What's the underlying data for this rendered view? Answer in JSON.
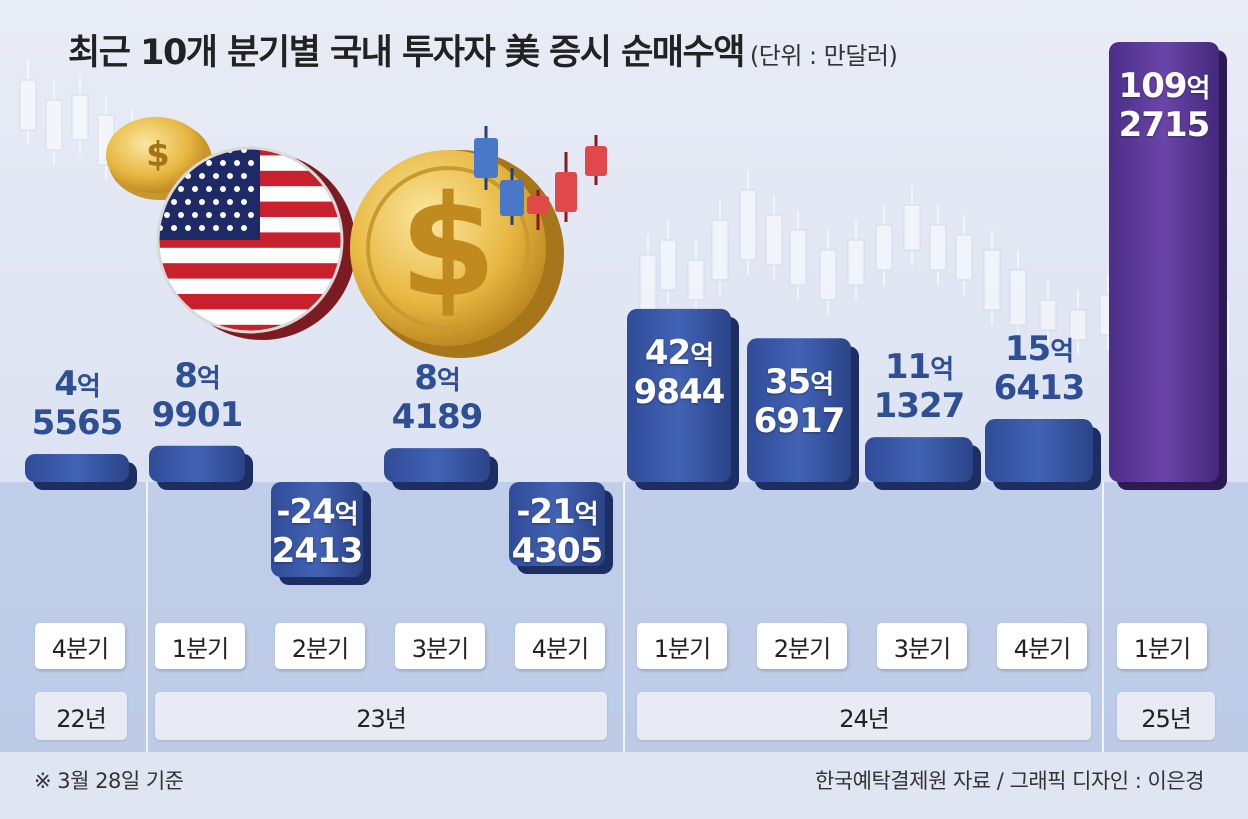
{
  "title": "최근 10개 분기별 국내 투자자 美 증시 순매수액",
  "unit": "(단위 : 만달러)",
  "footnote_left": "※ 3월 28일 기준",
  "footnote_right": "한국예탁결제원 자료 / 그래픽 디자인 : 이은경",
  "colors": {
    "bar": "#3a5aa8",
    "bar_highlight": "#5a3a96",
    "label_text": "#2e4f93"
  },
  "illustration_icons": [
    "us-flag-coin-icon",
    "gold-dollar-coin-icon",
    "candlestick-background-icon"
  ],
  "quarter_labels": [
    "4분기",
    "1분기",
    "2분기",
    "3분기",
    "4분기",
    "1분기",
    "2분기",
    "3분기",
    "4분기",
    "1분기"
  ],
  "year_labels": [
    "22년",
    "23년",
    "24년",
    "25년"
  ],
  "value_labels": [
    {
      "eok": "4억",
      "rest": "5565"
    },
    {
      "eok": "8억",
      "rest": "9901"
    },
    {
      "eok": "-24억",
      "rest": "2413"
    },
    {
      "eok": "8억",
      "rest": "4189"
    },
    {
      "eok": "-21억",
      "rest": "4305"
    },
    {
      "eok": "42억",
      "rest": "9844"
    },
    {
      "eok": "35억",
      "rest": "6917"
    },
    {
      "eok": "11억",
      "rest": "1327"
    },
    {
      "eok": "15억",
      "rest": "6413"
    },
    {
      "eok": "109억",
      "rest": "2715"
    }
  ],
  "chart_data": {
    "type": "bar",
    "title": "최근 10개 분기별 국내 투자자 美 증시 순매수액",
    "unit": "(단위 : 만달러)",
    "categories": [
      "22년 4분기",
      "23년 1분기",
      "23년 2분기",
      "23년 3분기",
      "23년 4분기",
      "24년 1분기",
      "24년 2분기",
      "24년 3분기",
      "24년 4분기",
      "25년 1분기"
    ],
    "values": [
      45565,
      89901,
      -242413,
      84189,
      -214305,
      429844,
      356917,
      111327,
      156413,
      1092715
    ],
    "highlight_index": 9
  }
}
